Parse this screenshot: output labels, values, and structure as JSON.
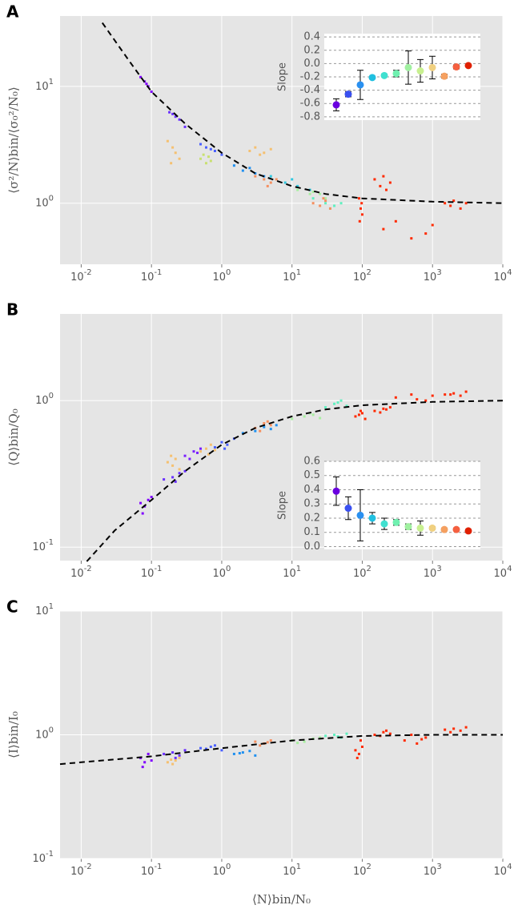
{
  "chart_data": [
    {
      "type": "scatter",
      "panel": "A",
      "ylabel": "⟨σ²/N⟩bin/⟨σ₀²/N₀⟩",
      "log": true,
      "grid": true,
      "xlim": [
        0.005,
        10000
      ],
      "ylim": [
        0.3,
        40
      ],
      "xticks": [
        {
          "value": 0.01,
          "label": "10^-2"
        },
        {
          "value": 0.1,
          "label": "10^-1"
        },
        {
          "value": 1,
          "label": "10^0"
        },
        {
          "value": 10,
          "label": "10^1"
        },
        {
          "value": 100,
          "label": "10^2"
        },
        {
          "value": 1000,
          "label": "10^3"
        },
        {
          "value": 10000,
          "label": "10^4"
        }
      ],
      "yticks": [
        {
          "value": 1,
          "label": "10^0"
        },
        {
          "value": 10,
          "label": "10^1"
        }
      ],
      "series": [
        {
          "color": "#8000ff",
          "x": [
            0.07,
            0.08,
            0.09,
            0.1,
            0.085
          ],
          "values": [
            12,
            11,
            10,
            9,
            10.5
          ]
        },
        {
          "color": "#6a30ff",
          "x": [
            0.18,
            0.22,
            0.25,
            0.3,
            0.2
          ],
          "values": [
            6,
            5.5,
            5.2,
            4.5,
            5.8
          ]
        },
        {
          "color": "#f5c070",
          "x": [
            0.17,
            0.2,
            0.22,
            0.25,
            0.19
          ],
          "values": [
            3.4,
            3,
            2.7,
            2.4,
            2.2
          ]
        },
        {
          "color": "#4a60ff",
          "x": [
            0.5,
            0.6,
            0.8,
            1,
            0.7
          ],
          "values": [
            3.2,
            3,
            2.8,
            2.6,
            2.9
          ]
        },
        {
          "color": "#c8e070",
          "x": [
            0.5,
            0.6,
            0.55,
            0.7,
            0.65
          ],
          "values": [
            2.4,
            2.2,
            2.6,
            2.3,
            2.5
          ]
        },
        {
          "color": "#2090f0",
          "x": [
            1.5,
            2,
            3,
            4,
            2.5
          ],
          "values": [
            2.1,
            1.9,
            1.8,
            1.7,
            2
          ]
        },
        {
          "color": "#f5c070",
          "x": [
            2.5,
            3,
            4,
            5,
            3.5
          ],
          "values": [
            2.8,
            3,
            2.7,
            2.9,
            2.6
          ]
        },
        {
          "color": "#f59060",
          "x": [
            3,
            4,
            5,
            6,
            4.5
          ],
          "values": [
            1.7,
            1.6,
            1.5,
            1.6,
            1.4
          ]
        },
        {
          "color": "#30c8e0",
          "x": [
            5,
            8,
            12,
            18,
            10
          ],
          "values": [
            1.7,
            1.5,
            1.4,
            1.3,
            1.6
          ]
        },
        {
          "color": "#a8f0a0",
          "x": [
            12,
            18,
            25,
            30,
            20
          ],
          "values": [
            1.3,
            1.2,
            1.2,
            1.1,
            1.25
          ]
        },
        {
          "color": "#60f0c0",
          "x": [
            20,
            30,
            40,
            50,
            35
          ],
          "values": [
            1.1,
            1.0,
            0.95,
            1.0,
            0.9
          ]
        },
        {
          "color": "#f59060",
          "x": [
            20,
            25,
            30,
            35,
            28
          ],
          "values": [
            1.0,
            0.95,
            1.05,
            0.9,
            1.1
          ]
        },
        {
          "color": "#ff2a00",
          "x": [
            90,
            95,
            100,
            92,
            98
          ],
          "values": [
            1.1,
            0.9,
            0.8,
            0.7,
            1.0
          ]
        },
        {
          "color": "#ff2a00",
          "x": [
            150,
            180,
            200,
            220,
            250
          ],
          "values": [
            1.6,
            1.4,
            1.7,
            1.3,
            1.5
          ]
        },
        {
          "color": "#ff2a00",
          "x": [
            200,
            300,
            500,
            800,
            1000
          ],
          "values": [
            0.6,
            0.7,
            0.5,
            0.55,
            0.65
          ]
        },
        {
          "color": "#ff2a00",
          "x": [
            1500,
            1800,
            2000,
            2500,
            3000
          ],
          "values": [
            1.0,
            0.95,
            1.05,
            0.9,
            1.0
          ]
        }
      ],
      "fit": {
        "x": [
          0.02,
          0.05,
          0.1,
          0.3,
          1,
          3,
          10,
          30,
          100,
          1000,
          10000
        ],
        "values": [
          35,
          16,
          9,
          4.8,
          2.7,
          1.8,
          1.4,
          1.2,
          1.1,
          1.03,
          1.0
        ]
      },
      "inset": {
        "type": "errorbar",
        "ylabel": "Slope",
        "categories": [
          null,
          null,
          null,
          null,
          null,
          null,
          null,
          null,
          null,
          null,
          null,
          null
        ],
        "values": [
          -0.62,
          -0.46,
          -0.32,
          -0.21,
          -0.18,
          -0.15,
          -0.06,
          -0.11,
          -0.06,
          -0.19,
          -0.05,
          -0.03
        ],
        "errors": [
          0.09,
          0.04,
          0.22,
          0.02,
          0.02,
          0.05,
          0.25,
          0.17,
          0.17,
          0.03,
          0.03,
          0.02
        ],
        "colors": [
          "#6a00e0",
          "#3a50f0",
          "#2a90f0",
          "#20c0e0",
          "#40e0d0",
          "#70f0b0",
          "#a0f0a0",
          "#c8f090",
          "#f0d080",
          "#f5a060",
          "#f56040",
          "#e02000"
        ],
        "ylim": [
          -0.85,
          0.45
        ],
        "yticks": [
          -0.8,
          -0.6,
          -0.4,
          -0.2,
          {
            "value": 0,
            "label": "0.0"
          },
          0.2,
          0.4
        ]
      }
    },
    {
      "type": "scatter",
      "panel": "B",
      "ylabel": "⟨Q⟩bin/Q₀",
      "log": true,
      "grid": true,
      "xlim": [
        0.005,
        10000
      ],
      "ylim": [
        0.081,
        3.9
      ],
      "xticks": [
        {
          "value": 0.01,
          "label": "10^-2"
        },
        {
          "value": 0.1,
          "label": "10^-1"
        },
        {
          "value": 1,
          "label": "10^0"
        },
        {
          "value": 10,
          "label": "10^1"
        },
        {
          "value": 100,
          "label": "10^2"
        },
        {
          "value": 1000,
          "label": "10^3"
        },
        {
          "value": 10000,
          "label": "10^4"
        }
      ],
      "yticks": [
        {
          "value": 0.1,
          "label": "10^-1"
        },
        {
          "value": 1,
          "label": "10^0"
        }
      ],
      "series": [
        {
          "color": "#8000ff",
          "x": [
            0.07,
            0.08,
            0.09,
            0.1,
            0.075
          ],
          "values": [
            0.2,
            0.19,
            0.21,
            0.22,
            0.17
          ]
        },
        {
          "color": "#6a30ff",
          "x": [
            0.15,
            0.2,
            0.25,
            0.3,
            0.22
          ],
          "values": [
            0.29,
            0.3,
            0.32,
            0.33,
            0.28
          ]
        },
        {
          "color": "#f5c070",
          "x": [
            0.17,
            0.2,
            0.22,
            0.25,
            0.19
          ],
          "values": [
            0.38,
            0.36,
            0.4,
            0.34,
            0.42
          ]
        },
        {
          "color": "#7a20ff",
          "x": [
            0.3,
            0.4,
            0.35,
            0.45,
            0.5
          ],
          "values": [
            0.42,
            0.45,
            0.4,
            0.44,
            0.47
          ]
        },
        {
          "color": "#f5c070",
          "x": [
            0.5,
            0.6,
            0.7,
            0.8,
            0.65
          ],
          "values": [
            0.45,
            0.47,
            0.5,
            0.46,
            0.43
          ]
        },
        {
          "color": "#4a60ff",
          "x": [
            0.8,
            1,
            1.2,
            1.5,
            1.1
          ],
          "values": [
            0.48,
            0.52,
            0.5,
            0.55,
            0.47
          ]
        },
        {
          "color": "#2090f0",
          "x": [
            2,
            3,
            4,
            6,
            5
          ],
          "values": [
            0.6,
            0.62,
            0.66,
            0.68,
            0.64
          ]
        },
        {
          "color": "#f59060",
          "x": [
            3,
            4,
            5,
            3.5,
            4.5
          ],
          "values": [
            0.65,
            0.7,
            0.68,
            0.62,
            0.72
          ]
        },
        {
          "color": "#a8f0a0",
          "x": [
            10,
            15,
            20,
            25,
            18
          ],
          "values": [
            0.75,
            0.78,
            0.8,
            0.76,
            0.82
          ]
        },
        {
          "color": "#60f0c0",
          "x": [
            30,
            40,
            50,
            60,
            45
          ],
          "values": [
            0.9,
            0.95,
            1.0,
            0.92,
            0.97
          ]
        },
        {
          "color": "#ff2a00",
          "x": [
            80,
            90,
            100,
            110,
            95
          ],
          "values": [
            0.78,
            0.8,
            0.82,
            0.75,
            0.85
          ]
        },
        {
          "color": "#ff2a00",
          "x": [
            150,
            200,
            250,
            180,
            220
          ],
          "values": [
            0.85,
            0.88,
            0.9,
            0.83,
            0.87
          ]
        },
        {
          "color": "#ff2a00",
          "x": [
            300,
            500,
            800,
            1000,
            600
          ],
          "values": [
            1.05,
            1.1,
            1.0,
            1.08,
            1.02
          ]
        },
        {
          "color": "#ff2a00",
          "x": [
            1500,
            2000,
            2500,
            3000,
            1800
          ],
          "values": [
            1.1,
            1.12,
            1.08,
            1.15,
            1.1
          ]
        }
      ],
      "fit": {
        "x": [
          0.012,
          0.03,
          0.1,
          0.3,
          1,
          3,
          10,
          30,
          100,
          1000,
          10000
        ],
        "values": [
          0.08,
          0.13,
          0.21,
          0.33,
          0.5,
          0.65,
          0.78,
          0.87,
          0.93,
          0.98,
          1.0
        ]
      },
      "inset": {
        "type": "errorbar",
        "ylabel": "Slope",
        "categories": [
          null,
          null,
          null,
          null,
          null,
          null,
          null,
          null,
          null,
          null,
          null,
          null
        ],
        "values": [
          0.39,
          0.27,
          0.22,
          0.2,
          0.16,
          0.17,
          0.14,
          0.13,
          0.13,
          0.12,
          0.12,
          0.11
        ],
        "errors": [
          0.1,
          0.08,
          0.18,
          0.04,
          0.04,
          0.02,
          0.02,
          0.05,
          0.01,
          0.01,
          0.01,
          0.01
        ],
        "colors": [
          "#6a00e0",
          "#3a50f0",
          "#2a90f0",
          "#20c0e0",
          "#40e0d0",
          "#70f0b0",
          "#a0f0a0",
          "#c8f090",
          "#f0d080",
          "#f5a060",
          "#f56040",
          "#e02000"
        ],
        "ylim": [
          -0.02,
          0.6
        ],
        "yticks": [
          {
            "value": 0,
            "label": "0.0"
          },
          0.1,
          0.2,
          0.3,
          0.4,
          0.5,
          0.6
        ]
      }
    },
    {
      "type": "scatter",
      "panel": "C",
      "ylabel": "⟨I⟩bin/I₀",
      "xlabel": "⟨N⟩bin/N₀",
      "log": true,
      "grid": true,
      "xlim": [
        0.005,
        10000
      ],
      "ylim": [
        0.1,
        10
      ],
      "xticks": [
        {
          "value": 0.01,
          "label": "10^-2"
        },
        {
          "value": 0.1,
          "label": "10^-1"
        },
        {
          "value": 1,
          "label": "10^0"
        },
        {
          "value": 10,
          "label": "10^1"
        },
        {
          "value": 100,
          "label": "10^2"
        },
        {
          "value": 1000,
          "label": "10^3"
        },
        {
          "value": 10000,
          "label": "10^4"
        }
      ],
      "yticks": [
        {
          "value": 0.1,
          "label": "10^-1"
        },
        {
          "value": 1,
          "label": "10^0"
        },
        {
          "value": 10,
          "label": "10^1"
        }
      ],
      "series": [
        {
          "color": "#8000ff",
          "x": [
            0.07,
            0.08,
            0.09,
            0.1,
            0.075
          ],
          "values": [
            0.65,
            0.6,
            0.7,
            0.62,
            0.55
          ]
        },
        {
          "color": "#6a30ff",
          "x": [
            0.15,
            0.2,
            0.25,
            0.3,
            0.22
          ],
          "values": [
            0.7,
            0.72,
            0.68,
            0.75,
            0.65
          ]
        },
        {
          "color": "#f5c070",
          "x": [
            0.17,
            0.2,
            0.22,
            0.25,
            0.19
          ],
          "values": [
            0.6,
            0.58,
            0.62,
            0.65,
            0.63
          ]
        },
        {
          "color": "#4a60ff",
          "x": [
            0.5,
            0.7,
            1,
            0.8,
            0.6
          ],
          "values": [
            0.78,
            0.8,
            0.75,
            0.82,
            0.77
          ]
        },
        {
          "color": "#2090f0",
          "x": [
            1.5,
            2,
            3,
            2.5,
            1.8
          ],
          "values": [
            0.7,
            0.72,
            0.68,
            0.74,
            0.71
          ]
        },
        {
          "color": "#f59060",
          "x": [
            3,
            4,
            5,
            3.5,
            4.5
          ],
          "values": [
            0.88,
            0.85,
            0.9,
            0.82,
            0.87
          ]
        },
        {
          "color": "#a8f0a0",
          "x": [
            10,
            15,
            20,
            25,
            12
          ],
          "values": [
            0.9,
            0.88,
            0.93,
            0.95,
            0.86
          ]
        },
        {
          "color": "#60f0c0",
          "x": [
            30,
            40,
            50,
            60,
            45
          ],
          "values": [
            0.98,
            1.0,
            0.95,
            1.02,
            0.97
          ]
        },
        {
          "color": "#ff2a00",
          "x": [
            80,
            90,
            100,
            95,
            85
          ],
          "values": [
            0.75,
            0.7,
            0.8,
            0.9,
            0.65
          ]
        },
        {
          "color": "#ff2a00",
          "x": [
            150,
            200,
            250,
            180,
            220
          ],
          "values": [
            1.0,
            1.05,
            1.02,
            0.98,
            1.08
          ]
        },
        {
          "color": "#ff2a00",
          "x": [
            400,
            600,
            800,
            500,
            700
          ],
          "values": [
            0.9,
            0.85,
            0.95,
            1.0,
            0.92
          ]
        },
        {
          "color": "#ff2a00",
          "x": [
            1500,
            2000,
            2500,
            3000,
            1800
          ],
          "values": [
            1.1,
            1.12,
            1.08,
            1.15,
            1.05
          ]
        }
      ],
      "fit": {
        "x": [
          0.005,
          0.01,
          0.1,
          1,
          10,
          100,
          1000,
          10000
        ],
        "values": [
          0.58,
          0.6,
          0.67,
          0.78,
          0.9,
          0.98,
          1.0,
          1.0
        ]
      }
    }
  ]
}
